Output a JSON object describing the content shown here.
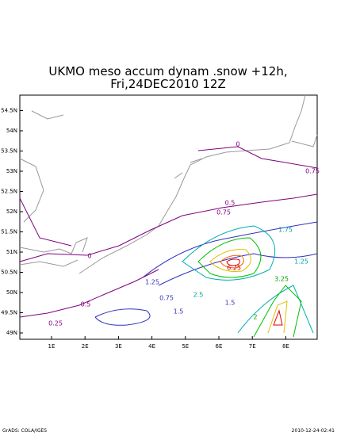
{
  "title": {
    "line1": "UKMO meso accum dynam .snow +12h,",
    "line2": "Fri,24DEC2010 12Z"
  },
  "map": {
    "lon_ticks": [
      {
        "value": 1,
        "label": "1E"
      },
      {
        "value": 2,
        "label": "2E"
      },
      {
        "value": 3,
        "label": "3E"
      },
      {
        "value": 4,
        "label": "4E"
      },
      {
        "value": 5,
        "label": "5E"
      },
      {
        "value": 6,
        "label": "6E"
      },
      {
        "value": 7,
        "label": "7E"
      },
      {
        "value": 8,
        "label": "8E"
      }
    ],
    "lat_ticks": [
      {
        "value": 54.5,
        "label": "54.5N"
      },
      {
        "value": 54,
        "label": "54N"
      },
      {
        "value": 53.5,
        "label": "53.5N"
      },
      {
        "value": 53,
        "label": "53N"
      },
      {
        "value": 52.5,
        "label": "52.5N"
      },
      {
        "value": 52,
        "label": "52N"
      },
      {
        "value": 51.5,
        "label": "51.5N"
      },
      {
        "value": 51,
        "label": "51N"
      },
      {
        "value": 50.5,
        "label": "50.5N"
      },
      {
        "value": 50,
        "label": "50N"
      },
      {
        "value": 49.5,
        "label": "49.5N"
      },
      {
        "value": 49,
        "label": "49N"
      }
    ],
    "contour_labels": [
      "0",
      "0",
      "0.75",
      "0.5",
      "0.75",
      "0.25",
      "0.5",
      "1.25",
      "0.75",
      "1.5",
      "6.25",
      "3.25",
      "1.75",
      "1.25",
      "2",
      "2.5",
      "1.5"
    ]
  },
  "footer": {
    "left": "GrADS: COLA/IGES",
    "right": "2010-12-24-02:41"
  }
}
